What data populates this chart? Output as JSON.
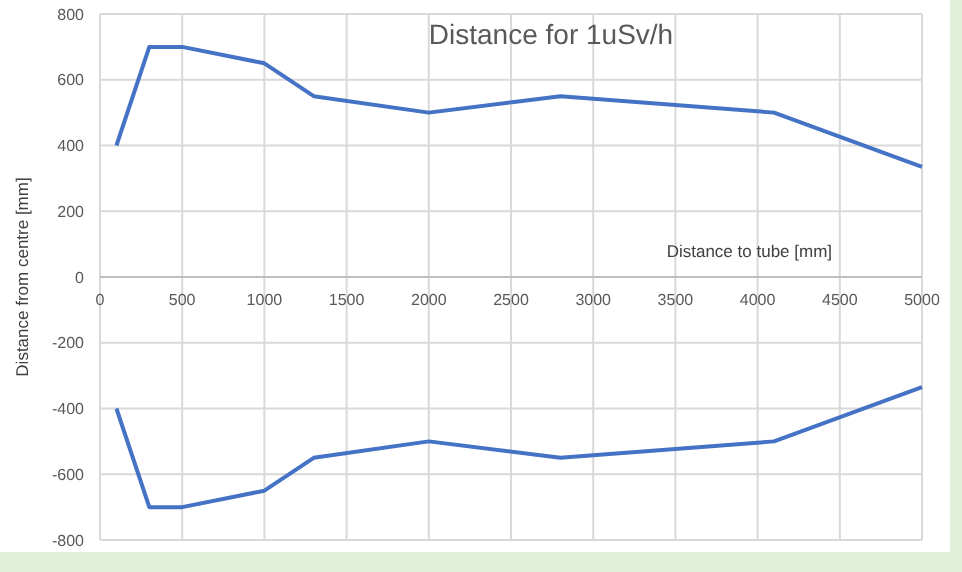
{
  "chart_data": {
    "type": "line",
    "title": "Distance for 1uSv/h",
    "xlabel": "Distance to tube [mm]",
    "ylabel": "Distance from centre [mm]",
    "x": [
      100,
      300,
      500,
      1000,
      1300,
      2000,
      2800,
      4100,
      5000
    ],
    "series": [
      {
        "color": "#4472c4",
        "values": [
          400,
          700,
          700,
          650,
          550,
          500,
          550,
          500,
          335
        ]
      },
      {
        "color": "#4472c4",
        "values": [
          -400,
          -700,
          -700,
          -650,
          -550,
          -500,
          -550,
          -500,
          -335
        ]
      }
    ],
    "xlim": [
      0,
      5000
    ],
    "xticks": [
      0,
      500,
      1000,
      1500,
      2000,
      2500,
      3000,
      3500,
      4000,
      4500,
      5000
    ],
    "ylim": [
      -800,
      800
    ],
    "yticks": [
      -800,
      -600,
      -400,
      -200,
      0,
      200,
      400,
      600,
      800
    ],
    "grid": true,
    "marker": "none",
    "line_style": "solid"
  }
}
